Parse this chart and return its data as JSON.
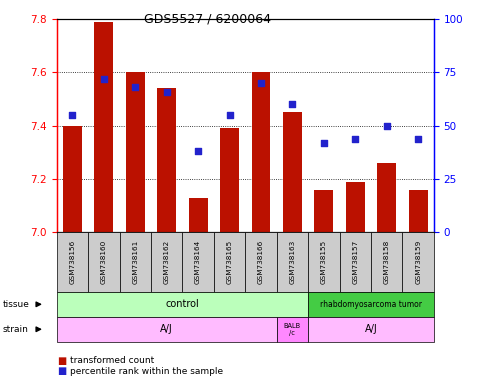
{
  "title": "GDS5527 / 6200064",
  "samples": [
    "GSM738156",
    "GSM738160",
    "GSM738161",
    "GSM738162",
    "GSM738164",
    "GSM738165",
    "GSM738166",
    "GSM738163",
    "GSM738155",
    "GSM738157",
    "GSM738158",
    "GSM738159"
  ],
  "bar_values": [
    7.4,
    7.79,
    7.6,
    7.54,
    7.13,
    7.39,
    7.6,
    7.45,
    7.16,
    7.19,
    7.26,
    7.16
  ],
  "percentile_values": [
    55,
    72,
    68,
    66,
    38,
    55,
    70,
    60,
    42,
    44,
    50,
    44
  ],
  "bar_base": 7.0,
  "ylim_left": [
    7.0,
    7.8
  ],
  "ylim_right": [
    0,
    100
  ],
  "yticks_left": [
    7.0,
    7.2,
    7.4,
    7.6,
    7.8
  ],
  "yticks_right": [
    0,
    25,
    50,
    75,
    100
  ],
  "bar_color": "#bb1100",
  "dot_color": "#2222cc",
  "tissue_control_color": "#bbffbb",
  "tissue_tumor_color": "#44cc44",
  "strain_aj_color": "#ffbbff",
  "strain_balb_color": "#ff88ff",
  "sample_box_color": "#cccccc",
  "legend_red": "transformed count",
  "legend_blue": "percentile rank within the sample"
}
